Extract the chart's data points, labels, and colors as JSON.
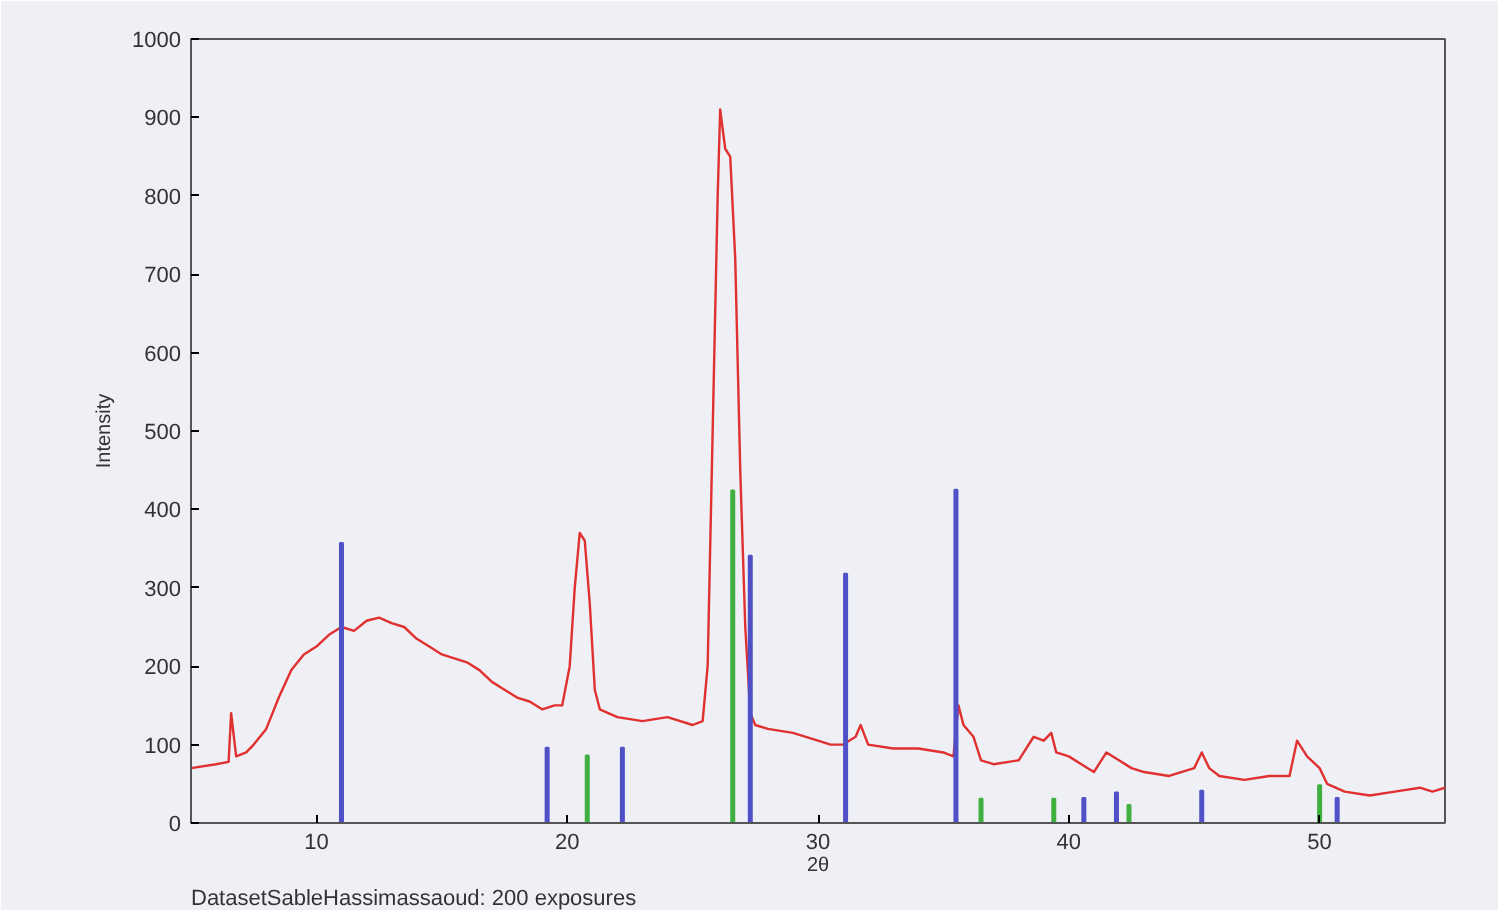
{
  "chart_data": {
    "type": "line",
    "xlabel": "2θ",
    "ylabel": "Intensity",
    "annotations": [
      "DatasetSableHassimassaoud: 200 exposures"
    ],
    "xlim": [
      5,
      55
    ],
    "ylim": [
      0,
      1000
    ],
    "xticks": [
      10,
      20,
      30,
      40,
      50
    ],
    "yticks": [
      0,
      100,
      200,
      300,
      400,
      500,
      600,
      700,
      800,
      900,
      1000
    ],
    "grid": false,
    "series": [
      {
        "color": "#e03030",
        "x": [
          5,
          6,
          6.5,
          6.6,
          6.8,
          7.2,
          7.5,
          8,
          8.5,
          9,
          9.5,
          10,
          10.5,
          11,
          11.5,
          12,
          12.5,
          13,
          13.5,
          14,
          14.5,
          15,
          15.5,
          16,
          16.5,
          17,
          17.5,
          18,
          18.5,
          19,
          19.5,
          19.8,
          20.1,
          20.3,
          20.5,
          20.7,
          20.9,
          21.1,
          21.3,
          22,
          23,
          24,
          25,
          25.4,
          25.6,
          25.8,
          26,
          26.1,
          26.3,
          26.5,
          26.7,
          26.9,
          27.1,
          27.3,
          27.5,
          28,
          29,
          30,
          30.5,
          31,
          31.5,
          31.7,
          32,
          33,
          34,
          35,
          35.4,
          35.6,
          35.8,
          36.2,
          36.5,
          37,
          38,
          38.6,
          39,
          39.3,
          39.5,
          40,
          40.5,
          41,
          41.5,
          42,
          42.5,
          43,
          44,
          45,
          45.3,
          45.6,
          46,
          47,
          48,
          48.8,
          49.1,
          49.5,
          50,
          50.3,
          51,
          52,
          53,
          54,
          54.5,
          55
        ],
        "values": [
          70,
          75,
          78,
          140,
          85,
          90,
          100,
          120,
          160,
          195,
          215,
          225,
          240,
          250,
          245,
          258,
          262,
          255,
          250,
          235,
          225,
          215,
          210,
          205,
          195,
          180,
          170,
          160,
          155,
          145,
          150,
          150,
          200,
          300,
          370,
          360,
          280,
          170,
          145,
          135,
          130,
          135,
          125,
          130,
          200,
          500,
          800,
          910,
          860,
          850,
          720,
          450,
          250,
          140,
          125,
          120,
          115,
          105,
          100,
          100,
          110,
          125,
          100,
          95,
          95,
          90,
          85,
          150,
          125,
          110,
          80,
          75,
          80,
          110,
          105,
          115,
          90,
          85,
          75,
          65,
          90,
          80,
          70,
          65,
          60,
          70,
          90,
          70,
          60,
          55,
          60,
          60,
          105,
          85,
          70,
          50,
          40,
          35,
          40,
          45,
          40,
          45
        ]
      },
      {
        "type": "bar",
        "color": "#5050c8",
        "x": [
          11.0,
          19.2,
          22.2,
          27.3,
          31.1,
          35.5,
          40.6,
          41.9,
          45.3,
          50.7
        ],
        "values": [
          357,
          96,
          96,
          341,
          318,
          425,
          32,
          39,
          41,
          32
        ]
      },
      {
        "type": "bar",
        "color": "#40b040",
        "x": [
          20.8,
          26.6,
          36.5,
          39.4,
          42.4,
          50.0
        ],
        "values": [
          86,
          424,
          31,
          31,
          23,
          48
        ]
      }
    ]
  }
}
